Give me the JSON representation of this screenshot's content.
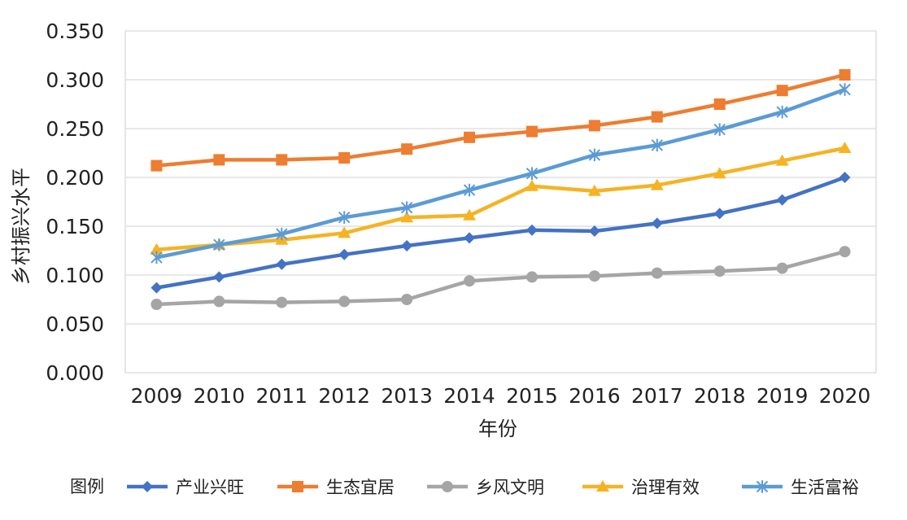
{
  "chart_data": {
    "type": "line",
    "x": [
      "2009",
      "2010",
      "2011",
      "2012",
      "2013",
      "2014",
      "2015",
      "2016",
      "2017",
      "2018",
      "2019",
      "2020"
    ],
    "xlabel": "年份",
    "ylabel": "乡村振兴水平",
    "ylim": [
      0,
      0.35
    ],
    "yticks": [
      "0.000",
      "0.050",
      "0.100",
      "0.150",
      "0.200",
      "0.250",
      "0.300",
      "0.350"
    ],
    "grid": true,
    "legend_title": "图例",
    "legend_position": "bottom",
    "series": [
      {
        "name": "产业兴旺",
        "color": "#4472c4",
        "marker": "diamond",
        "values": [
          0.087,
          0.098,
          0.111,
          0.121,
          0.13,
          0.138,
          0.146,
          0.145,
          0.153,
          0.163,
          0.177,
          0.2
        ]
      },
      {
        "name": "生态宜居",
        "color": "#ed7d31",
        "marker": "square",
        "values": [
          0.212,
          0.218,
          0.218,
          0.22,
          0.229,
          0.241,
          0.247,
          0.253,
          0.262,
          0.275,
          0.289,
          0.305
        ]
      },
      {
        "name": "乡风文明",
        "color": "#a5a5a5",
        "marker": "circle",
        "values": [
          0.07,
          0.073,
          0.072,
          0.073,
          0.075,
          0.094,
          0.098,
          0.099,
          0.102,
          0.104,
          0.107,
          0.124
        ]
      },
      {
        "name": "治理有效",
        "color": "#f5b324",
        "marker": "triangle",
        "values": [
          0.126,
          0.131,
          0.136,
          0.143,
          0.159,
          0.161,
          0.191,
          0.186,
          0.192,
          0.204,
          0.217,
          0.23
        ]
      },
      {
        "name": "生活富裕",
        "color": "#5b9bd5",
        "marker": "asterisk",
        "values": [
          0.118,
          0.131,
          0.142,
          0.159,
          0.169,
          0.187,
          0.204,
          0.223,
          0.233,
          0.249,
          0.267,
          0.29
        ]
      }
    ]
  }
}
